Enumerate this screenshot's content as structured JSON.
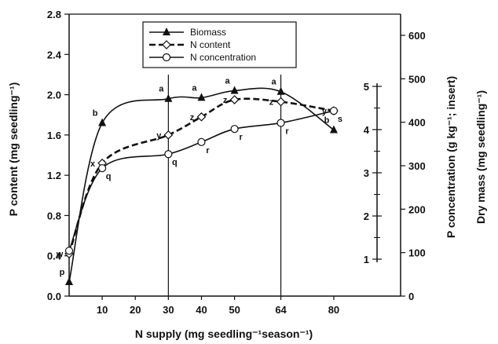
{
  "chart_data": {
    "type": "line",
    "xlabel": "N supply (mg seedling⁻¹season⁻¹)",
    "ylabel_left": "P content (mg seedling⁻¹)",
    "ylabel_right_inner": "P concentration (g kg⁻¹; insert)",
    "ylabel_right_outer": "Dry mass (mg seedling⁻¹)",
    "x_ticks": [
      "10",
      "20",
      "30",
      "40",
      "50",
      "64",
      "80"
    ],
    "x_tick_values": [
      10,
      20,
      30,
      40,
      50,
      64,
      80
    ],
    "xlim": [
      0,
      85
    ],
    "y_left_ticks": [
      "0.0",
      "0.4",
      "0.8",
      "1.2",
      "1.6",
      "2.0",
      "2.4",
      "2.8"
    ],
    "y_left_range": [
      0,
      2.8
    ],
    "y_right_outer_ticks": [
      "0",
      "100",
      "200",
      "300",
      "400",
      "500",
      "600"
    ],
    "y_right_outer_range": [
      0,
      600
    ],
    "y_inner_ticks": [
      "1",
      "2",
      "3",
      "4",
      "5"
    ],
    "y_inner_range": [
      1,
      5
    ],
    "reference_lines_x": [
      30,
      64
    ],
    "legend_position": "top-center",
    "series": [
      {
        "name": "Biomass",
        "marker": "triangle",
        "line": "solid",
        "color": "#111111",
        "x": [
          0,
          10,
          30,
          40,
          50,
          64,
          80
        ],
        "y": [
          0.14,
          1.72,
          1.96,
          1.97,
          2.04,
          2.03,
          1.65
        ],
        "labels": [
          "p",
          "b",
          "a",
          "a",
          "a",
          "a",
          "b"
        ]
      },
      {
        "name": "N content",
        "marker": "diamond",
        "line": "dashed",
        "color": "#111111",
        "x": [
          0,
          10,
          30,
          40,
          50,
          64,
          80
        ],
        "y": [
          0.42,
          1.32,
          1.6,
          1.78,
          1.95,
          1.93,
          1.84
        ],
        "labels": [
          "w",
          "x",
          "y",
          "z",
          "z",
          "z",
          "y"
        ]
      },
      {
        "name": "N concentration",
        "marker": "circle",
        "line": "solid",
        "color": "#111111",
        "x": [
          0,
          10,
          30,
          40,
          50,
          64,
          80
        ],
        "y": [
          0.45,
          1.27,
          1.41,
          1.53,
          1.66,
          1.72,
          1.84
        ],
        "labels": [
          "",
          "q",
          "q",
          "r",
          "r",
          "r",
          "s"
        ]
      }
    ]
  }
}
